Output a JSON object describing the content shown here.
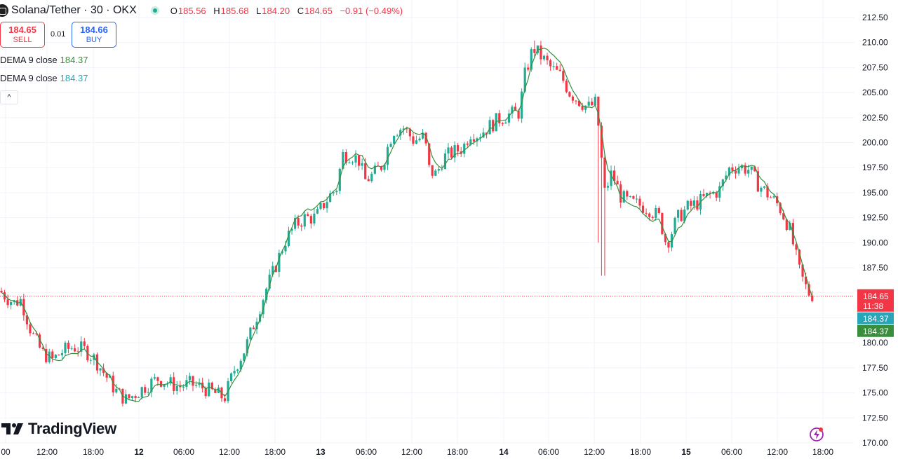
{
  "header": {
    "symbol": "Solana/Tether · 30 · OKX",
    "ohlc": [
      {
        "key": "O",
        "value": "185.56"
      },
      {
        "key": "H",
        "value": "185.68"
      },
      {
        "key": "L",
        "value": "184.20"
      },
      {
        "key": "C",
        "value": "184.65"
      },
      {
        "key": "",
        "value": "−0.91 (−0.49%)"
      }
    ]
  },
  "trade": {
    "sell_price": "184.65",
    "sell_label": "SELL",
    "spread": "0.01",
    "buy_price": "184.66",
    "buy_label": "BUY"
  },
  "indicators": [
    {
      "name": "DEMA 9 close",
      "value": "184.37",
      "color": "#388e3c"
    },
    {
      "name": "DEMA 9 close",
      "value": "184.37",
      "color": "#26a6b8"
    }
  ],
  "collapse_icon": "chevron-up-icon",
  "brand": "TradingView",
  "colors": {
    "up": "#22ab94",
    "down": "#f23645",
    "dema": "#388e3c",
    "dema2": "#26a6b8"
  },
  "chart_data": {
    "type": "candlestick",
    "ylim": [
      170,
      213.5
    ],
    "y_ticks": [
      "212.50",
      "210.00",
      "207.50",
      "205.00",
      "202.50",
      "200.00",
      "197.50",
      "195.00",
      "192.50",
      "190.00",
      "187.50",
      "185.00",
      "182.50",
      "180.00",
      "177.50",
      "175.00",
      "172.50",
      "170.00"
    ],
    "x_ticks": [
      "00",
      "12:00",
      "18:00",
      "12",
      "06:00",
      "12:00",
      "18:00",
      "13",
      "06:00",
      "12:00",
      "18:00",
      "14",
      "06:00",
      "12:00",
      "18:00",
      "15",
      "06:00",
      "12:00",
      "18:00"
    ],
    "price_labels": [
      {
        "text": "184.65",
        "sub": "11:38",
        "value": 184.65,
        "color": "#f23645"
      },
      {
        "text": "184.37",
        "value": 184.37,
        "color": "#26a6b8"
      },
      {
        "text": "184.37",
        "value": 184.37,
        "color": "#388e3c"
      }
    ],
    "last_price": 184.65,
    "anchors": [
      [
        0,
        185.2
      ],
      [
        10,
        184.5
      ],
      [
        20,
        184.0
      ],
      [
        30,
        184.3
      ],
      [
        45,
        181.0
      ],
      [
        60,
        179.0
      ],
      [
        75,
        178.3
      ],
      [
        90,
        179.2
      ],
      [
        105,
        179.6
      ],
      [
        120,
        179.3
      ],
      [
        135,
        178.4
      ],
      [
        150,
        176.8
      ],
      [
        165,
        175.2
      ],
      [
        180,
        174.3
      ],
      [
        195,
        175.0
      ],
      [
        210,
        175.8
      ],
      [
        225,
        176.4
      ],
      [
        240,
        176.0
      ],
      [
        255,
        175.6
      ],
      [
        270,
        175.9
      ],
      [
        290,
        175.5
      ],
      [
        305,
        175.0
      ],
      [
        320,
        174.5
      ],
      [
        335,
        177.5
      ],
      [
        350,
        179.5
      ],
      [
        365,
        182.5
      ],
      [
        380,
        185.5
      ],
      [
        392,
        187.5
      ],
      [
        405,
        190.0
      ],
      [
        420,
        191.7
      ],
      [
        435,
        192.5
      ],
      [
        450,
        192.5
      ],
      [
        460,
        193.7
      ],
      [
        470,
        194.7
      ],
      [
        480,
        195.5
      ],
      [
        488,
        198.8
      ],
      [
        500,
        198.8
      ],
      [
        512,
        198.2
      ],
      [
        520,
        196.2
      ],
      [
        532,
        196.8
      ],
      [
        545,
        197.8
      ],
      [
        560,
        201.2
      ],
      [
        575,
        201.5
      ],
      [
        590,
        200.2
      ],
      [
        605,
        200.6
      ],
      [
        612,
        197.2
      ],
      [
        622,
        196.8
      ],
      [
        632,
        198.5
      ],
      [
        645,
        199.0
      ],
      [
        660,
        199.5
      ],
      [
        670,
        201.0
      ],
      [
        682,
        200.8
      ],
      [
        695,
        201.5
      ],
      [
        710,
        202.3
      ],
      [
        725,
        202.8
      ],
      [
        740,
        203.0
      ],
      [
        748,
        206.7
      ],
      [
        760,
        209.5
      ],
      [
        770,
        208.7
      ],
      [
        785,
        207.5
      ],
      [
        800,
        206.6
      ],
      [
        812,
        205.0
      ],
      [
        825,
        204.2
      ],
      [
        838,
        203.5
      ],
      [
        850,
        204.0
      ],
      [
        855,
        200.0
      ],
      [
        862,
        195.0
      ],
      [
        872,
        197.0
      ],
      [
        885,
        194.6
      ],
      [
        897,
        194.0
      ],
      [
        910,
        193.8
      ],
      [
        925,
        193.4
      ],
      [
        940,
        192.5
      ],
      [
        950,
        189.8
      ],
      [
        965,
        192.4
      ],
      [
        980,
        193.5
      ],
      [
        995,
        194.0
      ],
      [
        1010,
        194.7
      ],
      [
        1025,
        195.2
      ],
      [
        1040,
        197.5
      ],
      [
        1055,
        197.6
      ],
      [
        1068,
        197.3
      ],
      [
        1080,
        195.9
      ],
      [
        1095,
        194.8
      ],
      [
        1110,
        193.7
      ],
      [
        1125,
        191.5
      ],
      [
        1140,
        187.0
      ],
      [
        1152,
        185.0
      ],
      [
        1162,
        184.65
      ]
    ]
  }
}
